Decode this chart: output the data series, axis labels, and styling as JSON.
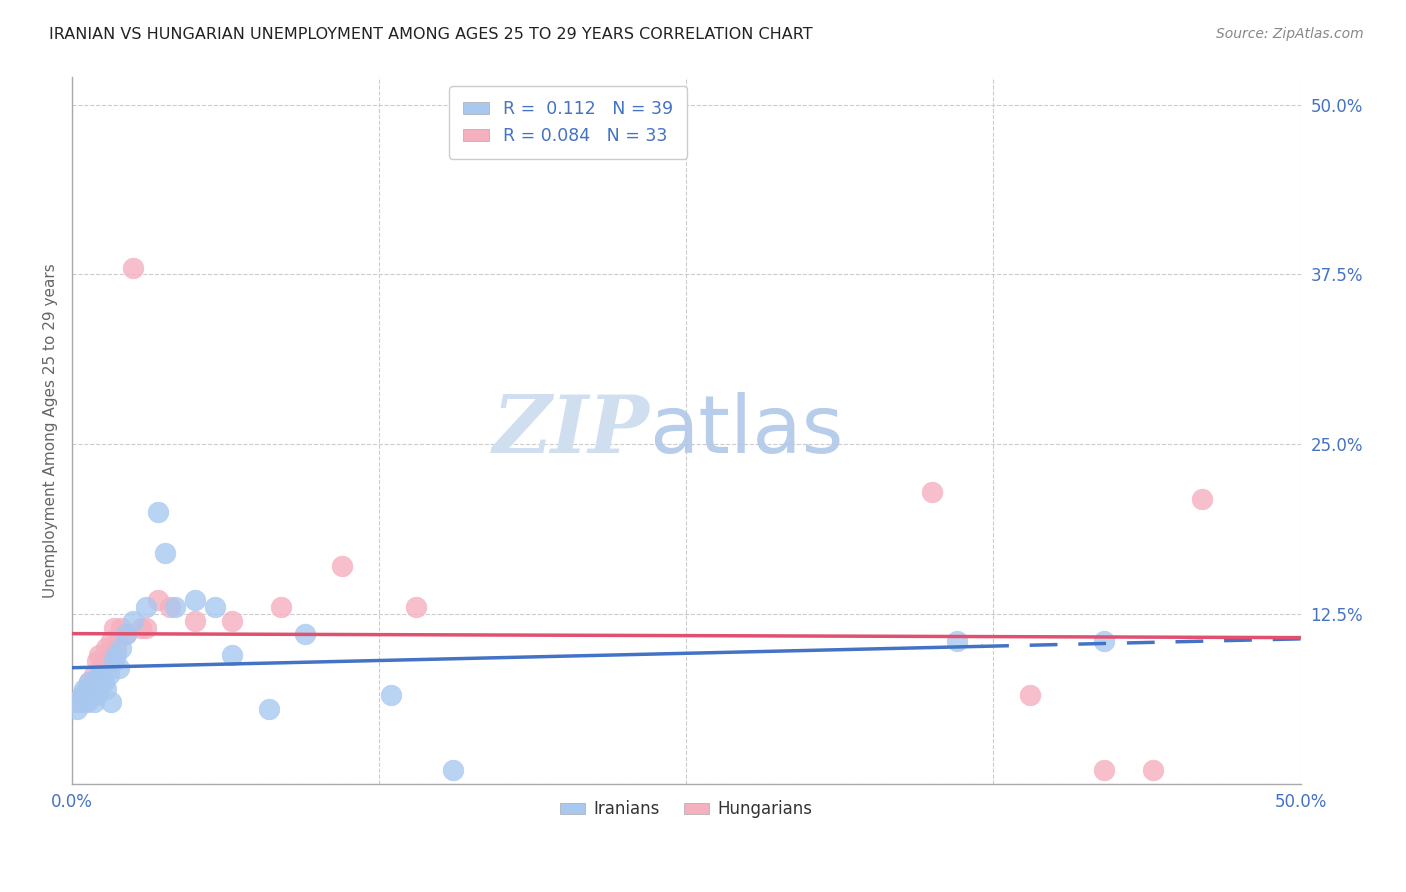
{
  "title": "IRANIAN VS HUNGARIAN UNEMPLOYMENT AMONG AGES 25 TO 29 YEARS CORRELATION CHART",
  "source": "Source: ZipAtlas.com",
  "ylabel_label": "Unemployment Among Ages 25 to 29 years",
  "xlim": [
    0.0,
    0.5
  ],
  "ylim": [
    0.0,
    0.52
  ],
  "x_ticks": [
    0.0,
    0.125,
    0.25,
    0.375,
    0.5
  ],
  "x_tick_labels": [
    "0.0%",
    "",
    "",
    "",
    "50.0%"
  ],
  "y_tick_labels_right": [
    "50.0%",
    "37.5%",
    "25.0%",
    "12.5%",
    ""
  ],
  "y_ticks_right": [
    0.5,
    0.375,
    0.25,
    0.125,
    0.0
  ],
  "iranians_color": "#a8c8f0",
  "hungarians_color": "#f5b0c0",
  "trend_iranian_color": "#4472c4",
  "trend_hungarian_color": "#e05070",
  "R_iranian": 0.112,
  "N_iranian": 39,
  "R_hungarian": 0.084,
  "N_hungarian": 33,
  "background_color": "#ffffff",
  "grid_color": "#cccccc",
  "iranians_x": [
    0.002,
    0.003,
    0.004,
    0.005,
    0.005,
    0.006,
    0.007,
    0.007,
    0.008,
    0.008,
    0.009,
    0.009,
    0.01,
    0.01,
    0.011,
    0.012,
    0.013,
    0.014,
    0.015,
    0.016,
    0.017,
    0.018,
    0.019,
    0.02,
    0.022,
    0.025,
    0.03,
    0.035,
    0.038,
    0.042,
    0.05,
    0.058,
    0.065,
    0.08,
    0.095,
    0.13,
    0.155,
    0.36,
    0.42
  ],
  "iranians_y": [
    0.055,
    0.06,
    0.065,
    0.065,
    0.07,
    0.06,
    0.07,
    0.075,
    0.07,
    0.065,
    0.06,
    0.075,
    0.07,
    0.065,
    0.08,
    0.08,
    0.075,
    0.07,
    0.08,
    0.06,
    0.09,
    0.095,
    0.085,
    0.1,
    0.11,
    0.12,
    0.13,
    0.2,
    0.17,
    0.13,
    0.135,
    0.13,
    0.095,
    0.055,
    0.11,
    0.065,
    0.01,
    0.105,
    0.105
  ],
  "hungarians_x": [
    0.002,
    0.004,
    0.005,
    0.006,
    0.007,
    0.008,
    0.009,
    0.01,
    0.011,
    0.012,
    0.013,
    0.014,
    0.015,
    0.016,
    0.017,
    0.018,
    0.02,
    0.022,
    0.025,
    0.028,
    0.03,
    0.035,
    0.04,
    0.05,
    0.065,
    0.085,
    0.11,
    0.14,
    0.35,
    0.39,
    0.42,
    0.44,
    0.46
  ],
  "hungarians_y": [
    0.06,
    0.065,
    0.06,
    0.07,
    0.075,
    0.075,
    0.08,
    0.09,
    0.095,
    0.085,
    0.09,
    0.1,
    0.095,
    0.105,
    0.115,
    0.1,
    0.115,
    0.11,
    0.38,
    0.115,
    0.115,
    0.135,
    0.13,
    0.12,
    0.12,
    0.13,
    0.16,
    0.13,
    0.215,
    0.065,
    0.01,
    0.01,
    0.21
  ],
  "watermark_text_zip": "ZIP",
  "watermark_text_atlas": "atlas",
  "legend_label_iranian": "Iranians",
  "legend_label_hungarian": "Hungarians"
}
